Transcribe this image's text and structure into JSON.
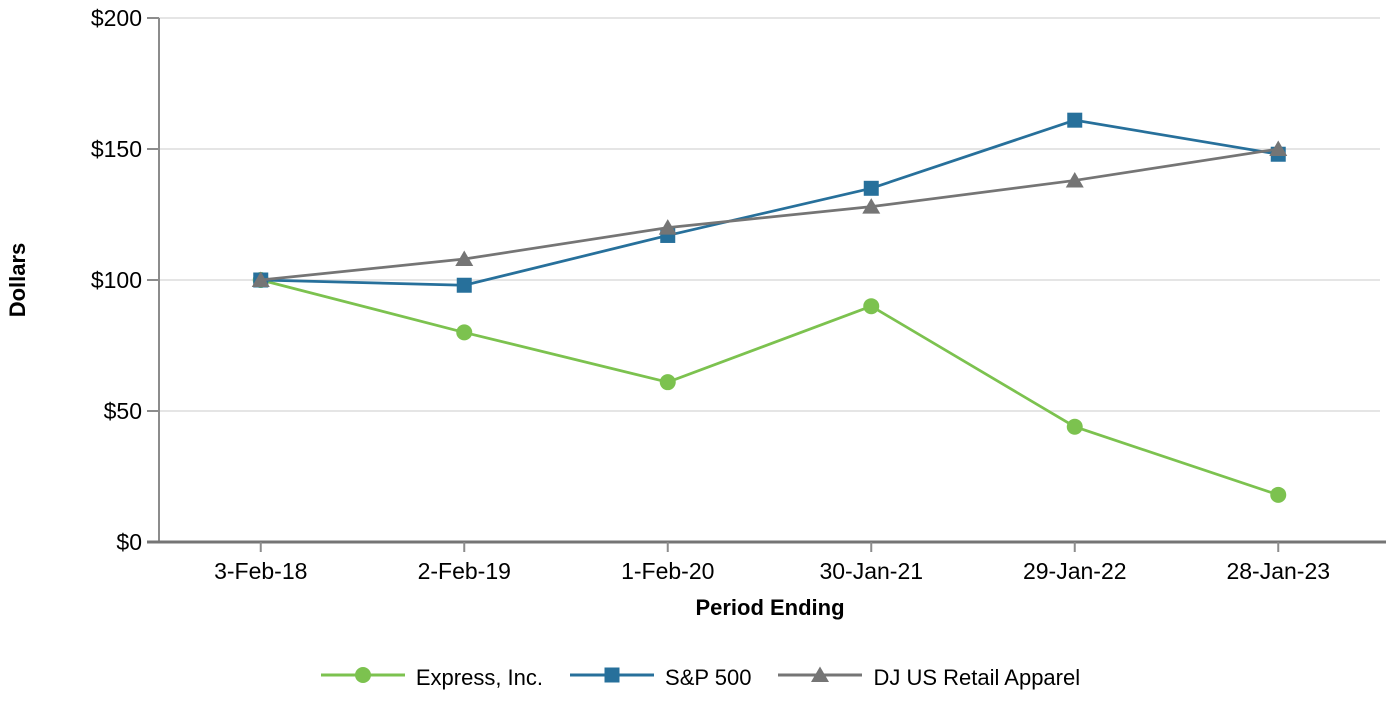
{
  "chart_data": {
    "type": "line",
    "title": "",
    "xlabel": "Period Ending",
    "ylabel": "Dollars",
    "categories": [
      "3-Feb-18",
      "2-Feb-19",
      "1-Feb-20",
      "30-Jan-21",
      "29-Jan-22",
      "28-Jan-23"
    ],
    "series": [
      {
        "name": "Express, Inc.",
        "marker": "circle",
        "color": "#7CC24F",
        "values": [
          100,
          80,
          61,
          90,
          44,
          18
        ]
      },
      {
        "name": "S&P 500",
        "marker": "square",
        "color": "#27709B",
        "values": [
          100,
          98,
          117,
          135,
          161,
          148
        ]
      },
      {
        "name": "DJ US Retail Apparel",
        "marker": "triangle",
        "color": "#757575",
        "values": [
          100,
          108,
          120,
          128,
          138,
          150
        ]
      }
    ],
    "y_ticks": [
      "$0",
      "$50",
      "$100",
      "$150",
      "$200"
    ],
    "y_tick_values": [
      0,
      50,
      100,
      150,
      200
    ],
    "ylim": [
      0,
      200
    ],
    "grid": true,
    "legend_position": "bottom"
  },
  "colors": {
    "background": "#FFFFFF",
    "gridline": "#E5E5E5",
    "x_axis": "#757575",
    "y_axis": "#8C8C8C",
    "tick": "#8C8C8C",
    "text": "#000000"
  }
}
